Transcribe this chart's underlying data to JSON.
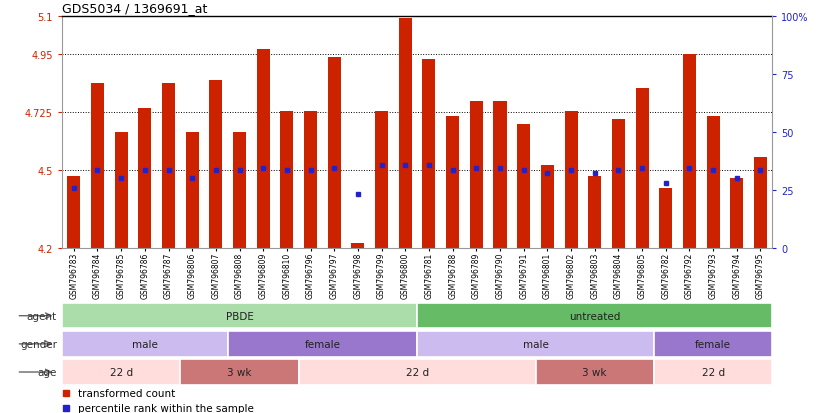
{
  "title": "GDS5034 / 1369691_at",
  "samples": [
    "GSM796783",
    "GSM796784",
    "GSM796785",
    "GSM796786",
    "GSM796787",
    "GSM796806",
    "GSM796807",
    "GSM796808",
    "GSM796809",
    "GSM796810",
    "GSM796796",
    "GSM796797",
    "GSM796798",
    "GSM796799",
    "GSM796800",
    "GSM796781",
    "GSM796788",
    "GSM796789",
    "GSM796790",
    "GSM796791",
    "GSM796801",
    "GSM796802",
    "GSM796803",
    "GSM796804",
    "GSM796805",
    "GSM796782",
    "GSM796792",
    "GSM796793",
    "GSM796794",
    "GSM796795"
  ],
  "bar_values": [
    4.48,
    4.84,
    4.65,
    4.74,
    4.84,
    4.65,
    4.85,
    4.65,
    4.97,
    4.73,
    4.73,
    4.94,
    4.22,
    4.73,
    5.09,
    4.93,
    4.71,
    4.77,
    4.77,
    4.68,
    4.52,
    4.73,
    4.48,
    4.7,
    4.82,
    4.43,
    4.95,
    4.71,
    4.47,
    4.55
  ],
  "percentile_values": [
    4.43,
    4.5,
    4.47,
    4.5,
    4.5,
    4.47,
    4.5,
    4.5,
    4.51,
    4.5,
    4.5,
    4.51,
    4.41,
    4.52,
    4.52,
    4.52,
    4.5,
    4.51,
    4.51,
    4.5,
    4.49,
    4.5,
    4.49,
    4.5,
    4.51,
    4.45,
    4.51,
    4.5,
    4.47,
    4.5
  ],
  "ymin": 4.2,
  "ymax": 5.1,
  "yticks": [
    4.2,
    4.5,
    4.725,
    4.95,
    5.1
  ],
  "ytick_labels": [
    "4.2",
    "4.5",
    "4.725",
    "4.95",
    "5.1"
  ],
  "right_yticks": [
    0,
    25,
    50,
    75,
    100
  ],
  "right_ytick_labels": [
    "0",
    "25",
    "50",
    "75",
    "100%"
  ],
  "hlines": [
    4.5,
    4.725,
    4.95
  ],
  "bar_color": "#cc2200",
  "percentile_color": "#2222cc",
  "agent_groups": [
    {
      "label": "PBDE",
      "start": 0,
      "end": 15,
      "color": "#aaddaa"
    },
    {
      "label": "untreated",
      "start": 15,
      "end": 30,
      "color": "#66bb66"
    }
  ],
  "gender_groups": [
    {
      "label": "male",
      "start": 0,
      "end": 7,
      "color": "#ccbbee"
    },
    {
      "label": "female",
      "start": 7,
      "end": 15,
      "color": "#9977cc"
    },
    {
      "label": "male",
      "start": 15,
      "end": 25,
      "color": "#ccbbee"
    },
    {
      "label": "female",
      "start": 25,
      "end": 30,
      "color": "#9977cc"
    }
  ],
  "age_groups": [
    {
      "label": "22 d",
      "start": 0,
      "end": 5,
      "color": "#ffdddd"
    },
    {
      "label": "3 wk",
      "start": 5,
      "end": 10,
      "color": "#cc7777"
    },
    {
      "label": "22 d",
      "start": 10,
      "end": 20,
      "color": "#ffdddd"
    },
    {
      "label": "3 wk",
      "start": 20,
      "end": 25,
      "color": "#cc7777"
    },
    {
      "label": "22 d",
      "start": 25,
      "end": 30,
      "color": "#ffdddd"
    }
  ],
  "row_labels": [
    "agent",
    "gender",
    "age"
  ],
  "legend_items": [
    {
      "label": "transformed count",
      "color": "#cc2200"
    },
    {
      "label": "percentile rank within the sample",
      "color": "#2222cc"
    }
  ],
  "background_color": "#ffffff"
}
